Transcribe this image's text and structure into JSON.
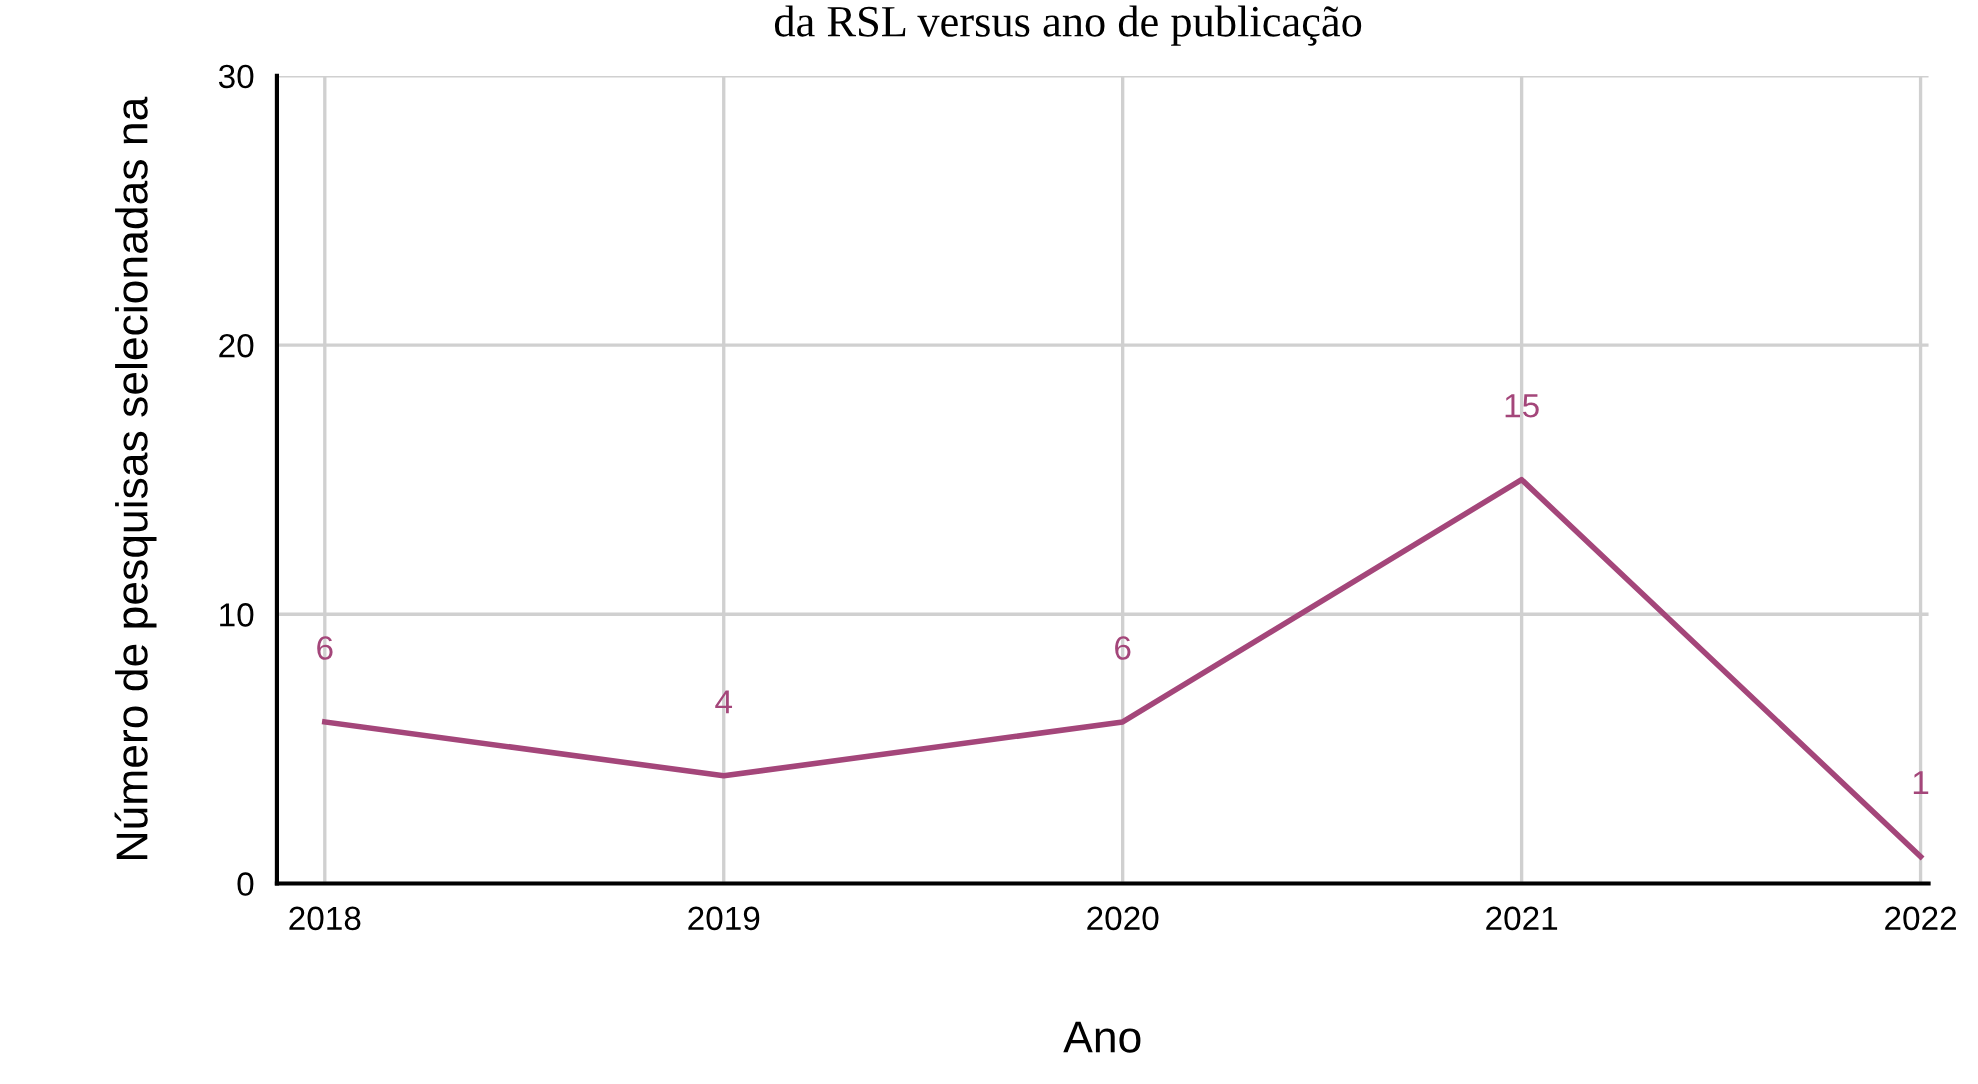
{
  "chart_data": {
    "type": "line",
    "title": "da RSL versus ano de publicação",
    "xlabel": "Ano",
    "ylabel": "Número de pesquisas selecionadas na",
    "categories": [
      "2018",
      "2019",
      "2020",
      "2021",
      "2022"
    ],
    "series": [
      {
        "color": "#a4467a",
        "values": [
          6,
          4,
          6,
          15,
          1
        ]
      }
    ],
    "ylim": [
      0,
      30
    ],
    "yticks": [
      0,
      10,
      20,
      30
    ],
    "grid": true,
    "data_labels": true,
    "marker": "none",
    "line_style": "solid"
  }
}
